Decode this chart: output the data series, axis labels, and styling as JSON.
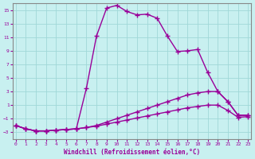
{
  "xlabel": "Windchill (Refroidissement éolien,°C)",
  "bg_color": "#c8f0f0",
  "grid_color": "#a0d8d8",
  "line_color": "#990099",
  "ylim_min": -4,
  "ylim_max": 16,
  "xlim_min": 0,
  "xlim_max": 23,
  "yticks": [
    -3,
    -1,
    1,
    3,
    5,
    7,
    9,
    11,
    13,
    15
  ],
  "xticks": [
    0,
    1,
    2,
    3,
    4,
    5,
    6,
    7,
    8,
    9,
    10,
    11,
    12,
    13,
    14,
    15,
    16,
    17,
    18,
    19,
    20,
    21,
    22,
    23
  ],
  "series": [
    {
      "x": [
        0,
        1,
        2,
        3,
        4,
        5,
        6,
        7,
        8,
        9,
        10,
        11,
        12,
        13,
        14,
        15,
        16,
        17,
        18,
        19,
        20,
        21,
        22,
        23
      ],
      "y": [
        -2.0,
        -2.5,
        -2.8,
        -2.8,
        -2.7,
        -2.6,
        -2.5,
        3.5,
        11.2,
        15.3,
        15.7,
        14.8,
        14.3,
        14.4,
        13.8,
        11.2,
        8.9,
        9.0,
        9.2,
        5.8,
        3.0,
        1.5,
        -0.5,
        -0.5
      ],
      "marker": "+",
      "ms": 4,
      "lw": 1.0,
      "ls": "-"
    },
    {
      "x": [
        0,
        1,
        2,
        3,
        4,
        5,
        6,
        7,
        8,
        9,
        10,
        11,
        12,
        13,
        14,
        15,
        16,
        17,
        18,
        19,
        20,
        21,
        22,
        23
      ],
      "y": [
        -2.0,
        -2.5,
        -2.8,
        -2.8,
        -2.7,
        -2.6,
        -2.5,
        -2.3,
        -2.0,
        -1.5,
        -1.0,
        -0.5,
        0.0,
        0.5,
        1.0,
        1.5,
        2.0,
        2.5,
        2.8,
        3.0,
        3.0,
        1.5,
        -0.5,
        -0.5
      ],
      "marker": "+",
      "ms": 4,
      "lw": 1.0,
      "ls": "-"
    },
    {
      "x": [
        0,
        1,
        2,
        3,
        4,
        5,
        6,
        7,
        8,
        9,
        10,
        11,
        12,
        13,
        14,
        15,
        16,
        17,
        18,
        19,
        20,
        21,
        22,
        23
      ],
      "y": [
        -2.0,
        -2.5,
        -2.8,
        -2.8,
        -2.7,
        -2.6,
        -2.5,
        -2.3,
        -2.1,
        -1.8,
        -1.5,
        -1.2,
        -0.9,
        -0.6,
        -0.3,
        0.0,
        0.3,
        0.6,
        0.8,
        1.0,
        1.0,
        0.2,
        -0.8,
        -0.7
      ],
      "marker": "+",
      "ms": 4,
      "lw": 1.0,
      "ls": "-"
    }
  ]
}
